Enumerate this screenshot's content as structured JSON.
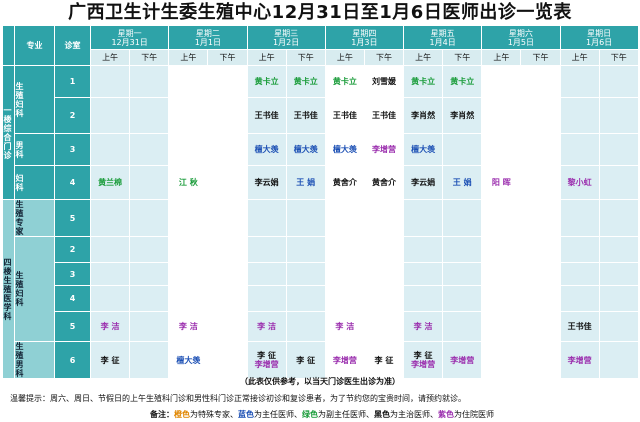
{
  "title": "广西卫生计生委生殖中心12月31日至1月6日医师出诊一览表",
  "header": {
    "col_specialty": "专业",
    "col_room": "诊室",
    "am": "上午",
    "pm": "下午",
    "days": [
      {
        "weekday": "星期一",
        "date": "12月31日"
      },
      {
        "weekday": "星期二",
        "date": "1月1日"
      },
      {
        "weekday": "星期三",
        "date": "1月2日"
      },
      {
        "weekday": "星期四",
        "date": "1月3日"
      },
      {
        "weekday": "星期五",
        "date": "1月4日"
      },
      {
        "weekday": "星期六",
        "date": "1月5日"
      },
      {
        "weekday": "星期日",
        "date": "1月6日"
      }
    ]
  },
  "floors": {
    "floor1": "一楼综合门诊",
    "floor4": "四楼生殖医学科"
  },
  "specialties": {
    "gyn_repro": "生殖妇科",
    "male": "男科",
    "gyn": "妇科",
    "expert": "生殖专家",
    "gyn_repro2": "生殖妇科",
    "male2": "生殖男科"
  },
  "colors": {
    "orange": "#e08600",
    "blue": "#1b4fb4",
    "green": "#1a9c3a",
    "black": "#111111",
    "purple": "#9b2fae",
    "header_teal": "#2ea3a8"
  },
  "rows": [
    {
      "room": "1",
      "cells": [
        {
          "t": "",
          "c": ""
        },
        {
          "t": "",
          "c": ""
        },
        {
          "t": "",
          "c": ""
        },
        {
          "t": "",
          "c": ""
        },
        {
          "t": "黄卡立",
          "c": "green"
        },
        {
          "t": "黄卡立",
          "c": "green"
        },
        {
          "t": "黄卡立",
          "c": "green"
        },
        {
          "t": "刘雪媛",
          "c": "black"
        },
        {
          "t": "黄卡立",
          "c": "green"
        },
        {
          "t": "黄卡立",
          "c": "green"
        },
        {
          "t": "",
          "c": ""
        },
        {
          "t": "",
          "c": ""
        },
        {
          "t": "",
          "c": ""
        },
        {
          "t": "",
          "c": ""
        }
      ]
    },
    {
      "room": "2",
      "cells": [
        {
          "t": "",
          "c": ""
        },
        {
          "t": "",
          "c": ""
        },
        {
          "t": "",
          "c": ""
        },
        {
          "t": "",
          "c": ""
        },
        {
          "t": "王书佳",
          "c": "black"
        },
        {
          "t": "王书佳",
          "c": "black"
        },
        {
          "t": "王书佳",
          "c": "black"
        },
        {
          "t": "王书佳",
          "c": "black"
        },
        {
          "t": "李肖然",
          "c": "black"
        },
        {
          "t": "李肖然",
          "c": "black"
        },
        {
          "t": "",
          "c": ""
        },
        {
          "t": "",
          "c": ""
        },
        {
          "t": "",
          "c": ""
        },
        {
          "t": "",
          "c": ""
        }
      ]
    },
    {
      "room": "3",
      "cells": [
        {
          "t": "",
          "c": ""
        },
        {
          "t": "",
          "c": ""
        },
        {
          "t": "",
          "c": ""
        },
        {
          "t": "",
          "c": ""
        },
        {
          "t": "檀大羡",
          "c": "blue"
        },
        {
          "t": "檀大羡",
          "c": "blue"
        },
        {
          "t": "檀大羡",
          "c": "blue"
        },
        {
          "t": "李增营",
          "c": "purple"
        },
        {
          "t": "檀大羡",
          "c": "blue"
        },
        {
          "t": "",
          "c": ""
        },
        {
          "t": "",
          "c": ""
        },
        {
          "t": "",
          "c": ""
        },
        {
          "t": "",
          "c": ""
        },
        {
          "t": "",
          "c": ""
        }
      ]
    },
    {
      "room": "4",
      "cells": [
        {
          "t": "黄兰棉",
          "c": "green"
        },
        {
          "t": "",
          "c": ""
        },
        {
          "t": "江  秋",
          "c": "green"
        },
        {
          "t": "",
          "c": ""
        },
        {
          "t": "李云娟",
          "c": "black"
        },
        {
          "t": "王  娟",
          "c": "blue"
        },
        {
          "t": "黄舍介",
          "c": "black"
        },
        {
          "t": "黄舍介",
          "c": "black"
        },
        {
          "t": "李云娟",
          "c": "black"
        },
        {
          "t": "王  娟",
          "c": "blue"
        },
        {
          "t": "阳  晖",
          "c": "purple"
        },
        {
          "t": "",
          "c": ""
        },
        {
          "t": "黎小虹",
          "c": "purple"
        },
        {
          "t": "",
          "c": ""
        }
      ]
    },
    {
      "room": "5",
      "cells": [
        {
          "t": "",
          "c": ""
        },
        {
          "t": "",
          "c": ""
        },
        {
          "t": "",
          "c": ""
        },
        {
          "t": "",
          "c": ""
        },
        {
          "t": "",
          "c": ""
        },
        {
          "t": "",
          "c": ""
        },
        {
          "t": "",
          "c": ""
        },
        {
          "t": "",
          "c": ""
        },
        {
          "t": "",
          "c": ""
        },
        {
          "t": "",
          "c": ""
        },
        {
          "t": "",
          "c": ""
        },
        {
          "t": "",
          "c": ""
        },
        {
          "t": "",
          "c": ""
        },
        {
          "t": "",
          "c": ""
        }
      ]
    },
    {
      "room": "2",
      "cells": [
        {
          "t": "",
          "c": ""
        },
        {
          "t": "",
          "c": ""
        },
        {
          "t": "",
          "c": ""
        },
        {
          "t": "",
          "c": ""
        },
        {
          "t": "",
          "c": ""
        },
        {
          "t": "",
          "c": ""
        },
        {
          "t": "",
          "c": ""
        },
        {
          "t": "",
          "c": ""
        },
        {
          "t": "",
          "c": ""
        },
        {
          "t": "",
          "c": ""
        },
        {
          "t": "",
          "c": ""
        },
        {
          "t": "",
          "c": ""
        },
        {
          "t": "",
          "c": ""
        },
        {
          "t": "",
          "c": ""
        }
      ]
    },
    {
      "room": "3",
      "cells": [
        {
          "t": "",
          "c": ""
        },
        {
          "t": "",
          "c": ""
        },
        {
          "t": "",
          "c": ""
        },
        {
          "t": "",
          "c": ""
        },
        {
          "t": "",
          "c": ""
        },
        {
          "t": "",
          "c": ""
        },
        {
          "t": "",
          "c": ""
        },
        {
          "t": "",
          "c": ""
        },
        {
          "t": "",
          "c": ""
        },
        {
          "t": "",
          "c": ""
        },
        {
          "t": "",
          "c": ""
        },
        {
          "t": "",
          "c": ""
        },
        {
          "t": "",
          "c": ""
        },
        {
          "t": "",
          "c": ""
        }
      ]
    },
    {
      "room": "4",
      "cells": [
        {
          "t": "",
          "c": ""
        },
        {
          "t": "",
          "c": ""
        },
        {
          "t": "",
          "c": ""
        },
        {
          "t": "",
          "c": ""
        },
        {
          "t": "",
          "c": ""
        },
        {
          "t": "",
          "c": ""
        },
        {
          "t": "",
          "c": ""
        },
        {
          "t": "",
          "c": ""
        },
        {
          "t": "",
          "c": ""
        },
        {
          "t": "",
          "c": ""
        },
        {
          "t": "",
          "c": ""
        },
        {
          "t": "",
          "c": ""
        },
        {
          "t": "",
          "c": ""
        },
        {
          "t": "",
          "c": ""
        }
      ]
    },
    {
      "room": "5",
      "cells": [
        {
          "t": "李  洁",
          "c": "purple"
        },
        {
          "t": "",
          "c": ""
        },
        {
          "t": "李  洁",
          "c": "purple"
        },
        {
          "t": "",
          "c": ""
        },
        {
          "t": "李  洁",
          "c": "purple"
        },
        {
          "t": "",
          "c": ""
        },
        {
          "t": "李  洁",
          "c": "purple"
        },
        {
          "t": "",
          "c": ""
        },
        {
          "t": "李  洁",
          "c": "purple"
        },
        {
          "t": "",
          "c": ""
        },
        {
          "t": "",
          "c": ""
        },
        {
          "t": "",
          "c": ""
        },
        {
          "t": "王书佳",
          "c": "black"
        },
        {
          "t": "",
          "c": ""
        }
      ]
    },
    {
      "room": "6",
      "cells": [
        {
          "t": "李  征",
          "c": "black"
        },
        {
          "t": "",
          "c": ""
        },
        {
          "t": "檀大羡",
          "c": "blue"
        },
        {
          "t": "",
          "c": ""
        },
        {
          "t": "李  征",
          "c": "black",
          "t2": "李增营",
          "c2": "purple"
        },
        {
          "t": "李  征",
          "c": "black"
        },
        {
          "t": "李增营",
          "c": "purple"
        },
        {
          "t": "李  征",
          "c": "black"
        },
        {
          "t": "李  征",
          "c": "black",
          "t2": "李增营",
          "c2": "purple"
        },
        {
          "t": "李增营",
          "c": "purple"
        },
        {
          "t": "",
          "c": ""
        },
        {
          "t": "",
          "c": ""
        },
        {
          "t": "李增营",
          "c": "purple"
        },
        {
          "t": "",
          "c": ""
        }
      ]
    }
  ],
  "notes": {
    "disclaimer": "（此表仅供参考，以当天门诊医生出诊为准）",
    "reminder": "温馨提示：周六、周日、节假日的上午生殖科门诊和男性科门诊正常接诊初诊和复诊患者，为了节约您的宝贵时间，请预约就诊。",
    "remark_label": "备注：",
    "legend": [
      {
        "color_word": "橙色",
        "text": "为特殊专家、",
        "c": "orange"
      },
      {
        "color_word": "蓝色",
        "text": "为主任医师、",
        "c": "blue"
      },
      {
        "color_word": "绿色",
        "text": "为副主任医师、",
        "c": "green"
      },
      {
        "color_word": "黑色",
        "text": "为主治医师、",
        "c": "black"
      },
      {
        "color_word": "紫色",
        "text": "为住院医师",
        "c": "purple"
      }
    ]
  }
}
